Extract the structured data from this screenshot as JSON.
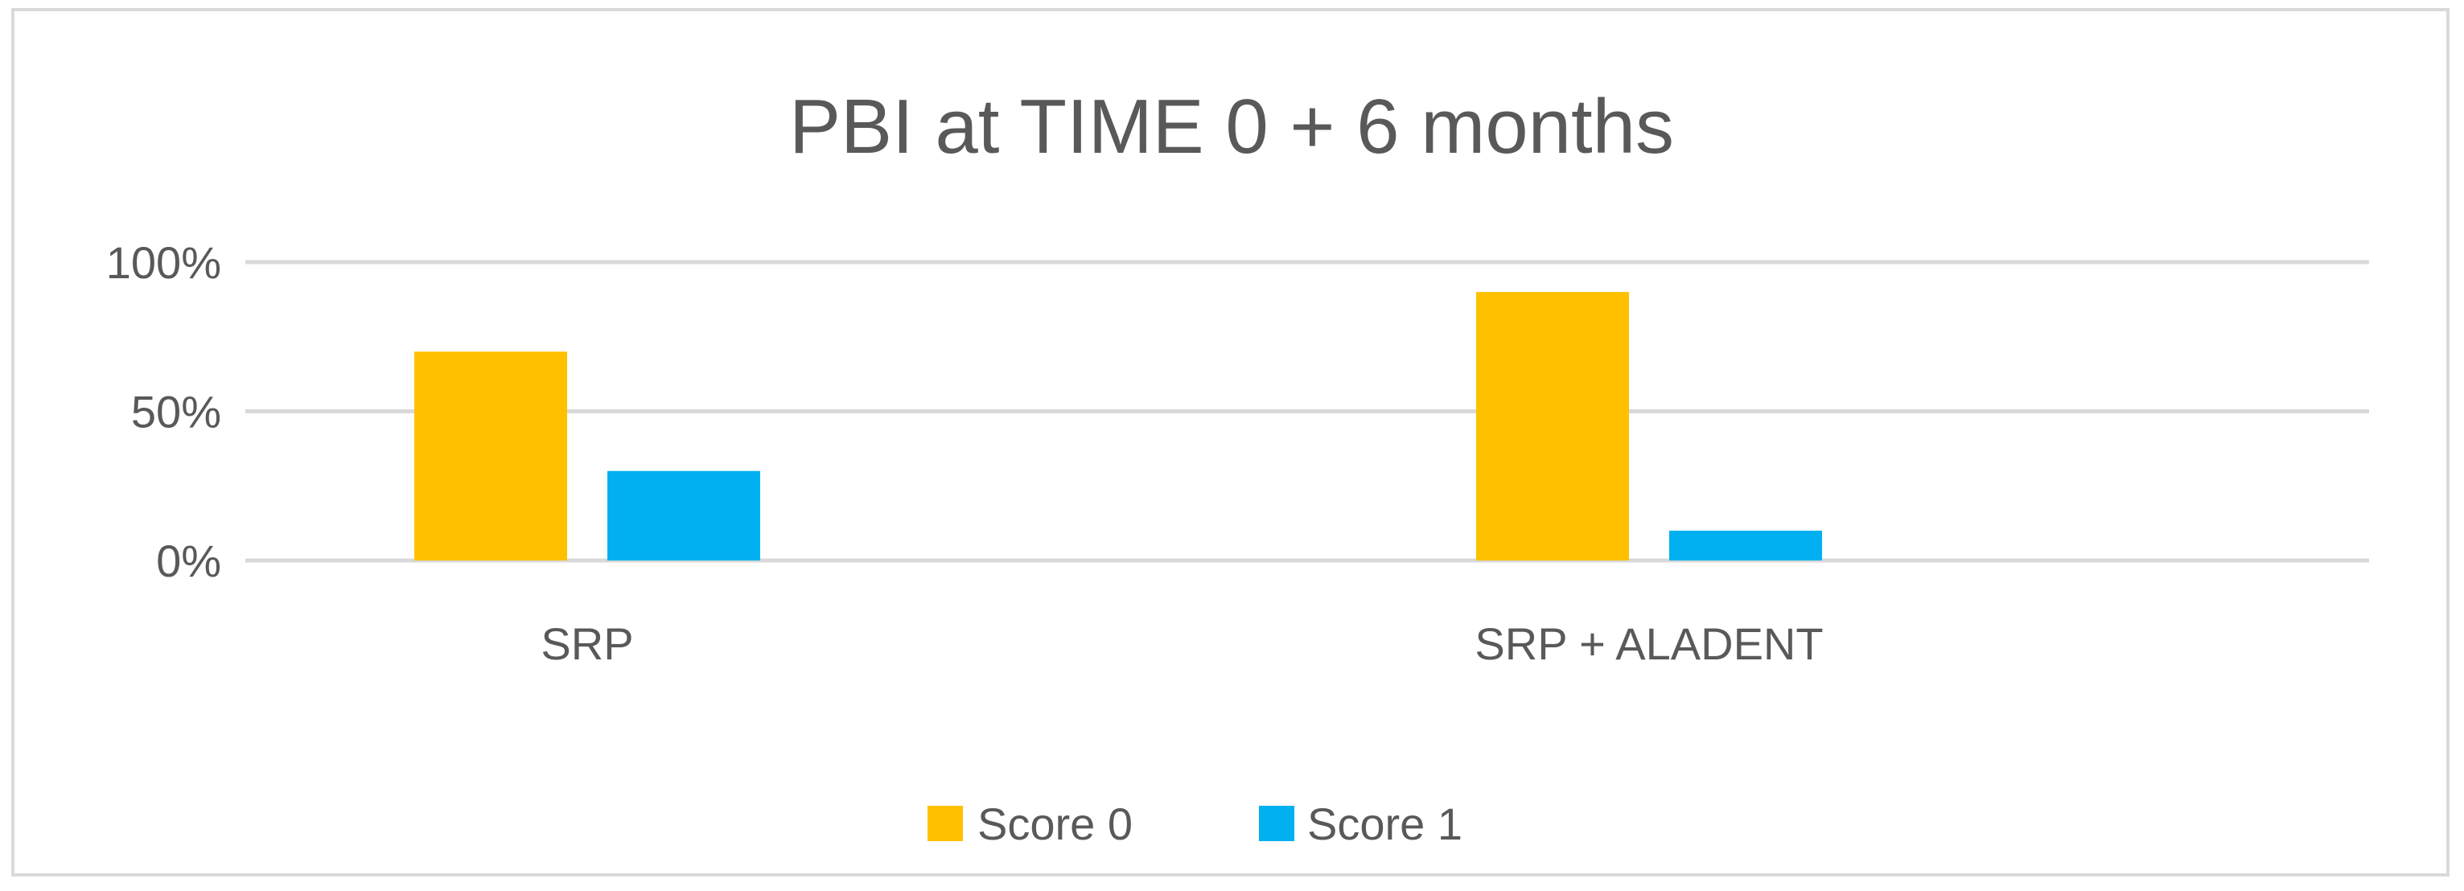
{
  "chart_data": {
    "type": "bar",
    "title": "PBI at TIME 0 + 6 months",
    "xlabel": "",
    "ylabel": "",
    "categories": [
      "SRP",
      "SRP + ALADENT"
    ],
    "series": [
      {
        "name": "Score 0",
        "color": "#FFC000",
        "values": [
          70,
          90
        ]
      },
      {
        "name": "Score 1",
        "color": "#00B0F0",
        "values": [
          30,
          10
        ]
      }
    ],
    "ylim": [
      0,
      100
    ],
    "yticks": [
      {
        "value": 0,
        "label": "0%"
      },
      {
        "value": 50,
        "label": "50%"
      },
      {
        "value": 100,
        "label": "100%"
      }
    ],
    "grid": true,
    "legend_position": "bottom"
  }
}
